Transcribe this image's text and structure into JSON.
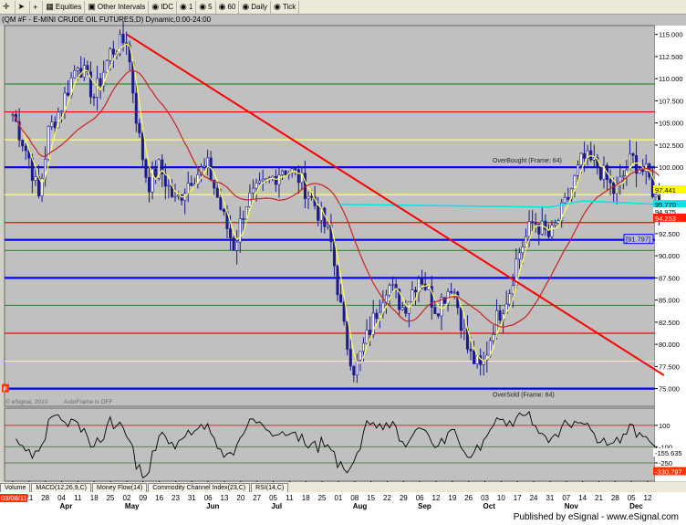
{
  "toolbar": {
    "items": [
      {
        "icon": "crosshair-icon",
        "label": ""
      },
      {
        "icon": "pointer-icon",
        "label": ""
      },
      {
        "icon": "plus-icon",
        "label": ""
      },
      {
        "icon": "equities-icon",
        "label": "Equities"
      },
      {
        "icon": "calendar-icon",
        "label": "Other Intervals"
      },
      {
        "icon": "",
        "label": "IDC"
      },
      {
        "icon": "",
        "label": "1"
      },
      {
        "icon": "",
        "label": "5"
      },
      {
        "icon": "",
        "label": "60"
      },
      {
        "icon": "",
        "label": "Daily"
      },
      {
        "icon": "",
        "label": "Tick"
      }
    ]
  },
  "title": "QM #F - E-MINI CRUDE OIL FUTURES,D) Dynamic,0:00-24:00",
  "title_prefix": "(",
  "annotations": {
    "overbought": "OverBought (Frame: 64)",
    "oversold": "OverSold (Frame: 64)",
    "autoframe": "AutoFrame is OFF",
    "copyright": "© eSignal, 2010",
    "bracket_price": "[91.797]",
    "date_box": "03/08/11",
    "f_box": "F"
  },
  "price_labels": {
    "last_box_top": "97.441",
    "cyan_box": "95.770",
    "white_box": "94.975",
    "red_box": "94.253"
  },
  "osc_labels": {
    "value1": "-155.635",
    "value2": "-330.797"
  },
  "bottom_tabs": [
    "Volume",
    "MACD(12,26,9,C)",
    "Money Flow(14)",
    "Commodity Channel Index(23,C)",
    "RSI(14,C)"
  ],
  "footer": "Published by eSignal - www.eSignal.com",
  "colors": {
    "background": "#c0c0c0",
    "candle": "#1a1a8c",
    "trendline": "#ff0000",
    "blue_level": "#0000ff",
    "yellow_level": "#ffff66",
    "red_level": "#ff0000",
    "cyan_ma": "#00e5e5",
    "red_ma": "#cc2222",
    "yellow_ma": "#ffff55"
  },
  "chart_data": {
    "type": "candlestick",
    "title": "QM #F - E-MINI CRUDE OIL FUTURES,D) Dynamic,0:00-24:00",
    "y_ticks": [
      115.0,
      112.5,
      110.0,
      107.5,
      105.0,
      102.5,
      100.0,
      97.5,
      95.0,
      92.5,
      90.0,
      87.5,
      85.0,
      82.5,
      80.0,
      77.5,
      75.0
    ],
    "ylim": [
      73.0,
      116.0
    ],
    "x_ticks": [
      "14",
      "21",
      "28",
      "04",
      "11",
      "18",
      "25",
      "02",
      "09",
      "16",
      "23",
      "31",
      "06",
      "13",
      "20",
      "27",
      "05",
      "11",
      "18",
      "25",
      "01",
      "08",
      "15",
      "22",
      "29",
      "06",
      "12",
      "19",
      "26",
      "03",
      "10",
      "17",
      "24",
      "31",
      "07",
      "14",
      "21",
      "28",
      "05",
      "12"
    ],
    "x_month_labels": [
      {
        "label": "Apr",
        "tick": 3
      },
      {
        "label": "May",
        "tick": 7
      },
      {
        "label": "Jun",
        "tick": 12
      },
      {
        "label": "Jul",
        "tick": 16
      },
      {
        "label": "Aug",
        "tick": 21
      },
      {
        "label": "Sep",
        "tick": 25
      },
      {
        "label": "Oct",
        "tick": 29
      },
      {
        "label": "Nov",
        "tick": 34
      },
      {
        "label": "Dec",
        "tick": 38
      }
    ],
    "horizontal_levels": [
      {
        "value": 100.0,
        "color": "blue",
        "style": "thick"
      },
      {
        "value": 87.5,
        "color": "blue",
        "style": "thick"
      },
      {
        "value": 91.8,
        "color": "blue",
        "style": "thick"
      },
      {
        "value": 75.0,
        "color": "blue",
        "style": "thick"
      },
      {
        "value": 106.25,
        "color": "red"
      },
      {
        "value": 93.75,
        "color": "red"
      },
      {
        "value": 81.25,
        "color": "red"
      },
      {
        "value": 103.1,
        "color": "yellow"
      },
      {
        "value": 96.9,
        "color": "yellow"
      },
      {
        "value": 78.1,
        "color": "yellow"
      },
      {
        "value": 109.4,
        "color": "green"
      },
      {
        "value": 90.6,
        "color": "green"
      },
      {
        "value": 84.4,
        "color": "green"
      }
    ],
    "trendline": {
      "from": {
        "tick": 7,
        "value": 115.0
      },
      "to": {
        "tick": 40,
        "value": 76.5
      }
    },
    "osc_ylim": [
      -420,
      260
    ],
    "osc_ticks": [
      100,
      -100,
      -250
    ]
  }
}
